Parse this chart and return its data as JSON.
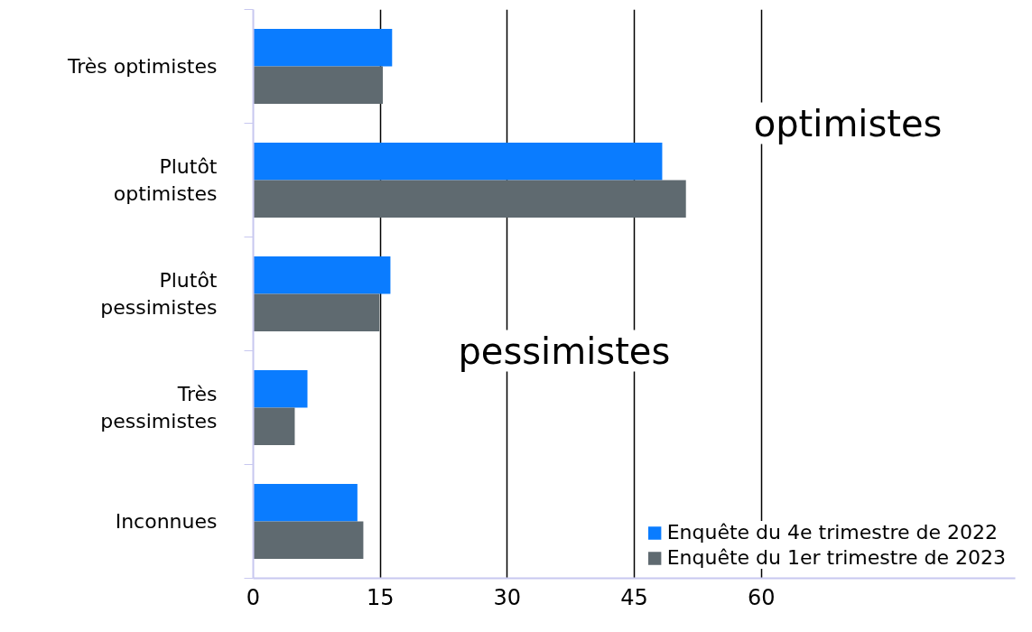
{
  "chart_data": {
    "type": "bar",
    "orientation": "horizontal",
    "categories": [
      "Très optimistes",
      "Plutôt optimistes",
      "Plutôt pessimistes",
      "Très pessimistes",
      "Inconnues"
    ],
    "series": [
      {
        "name": "Enquête du 4e trimestre de 2022",
        "color": "#0a7cff",
        "values": [
          16.4,
          48.3,
          16.2,
          6.4,
          12.3
        ]
      },
      {
        "name": "Enquête du 1er trimestre de 2023",
        "color": "#5f6a70",
        "values": [
          15.3,
          51.1,
          14.9,
          4.9,
          13.0
        ]
      }
    ],
    "xlim": [
      0,
      90
    ],
    "xticks": [
      0,
      15,
      30,
      45,
      60
    ],
    "grid": "x",
    "legend": "bottom right",
    "annotations": [
      "optimistes",
      "pessimistes"
    ]
  }
}
